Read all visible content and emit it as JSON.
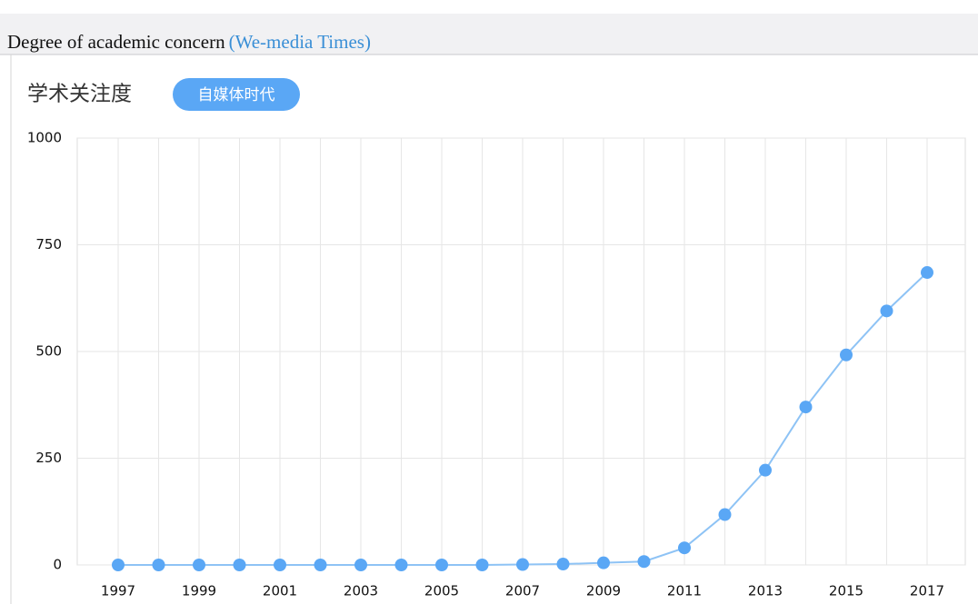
{
  "header": {
    "title": "Degree of academic concern",
    "subtitle": "(We-media Times)"
  },
  "chart_data": {
    "type": "line",
    "title": "学术关注度",
    "button": "自媒体时代",
    "categories": [
      "1997",
      null,
      "1999",
      null,
      "2001",
      null,
      "2003",
      null,
      "2005",
      null,
      "2007",
      null,
      "2009",
      null,
      "2011",
      null,
      "2013",
      null,
      "2015",
      null,
      "2017"
    ],
    "series": [
      {
        "name": "自媒体时代",
        "color": "#5aa7f5",
        "values": [
          0,
          0,
          0,
          0,
          0,
          0,
          0,
          0,
          0,
          0,
          1,
          2,
          5,
          8,
          40,
          118,
          222,
          370,
          492,
          595,
          685
        ]
      }
    ],
    "ylim": [
      0,
      1000
    ],
    "yticks": [
      0,
      250,
      500,
      750,
      1000
    ],
    "grid": true
  }
}
